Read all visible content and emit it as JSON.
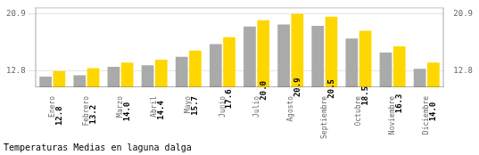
{
  "chart_data": {
    "type": "bar",
    "title": "Temperaturas Medias en laguna dalga",
    "categories": [
      "Enero",
      "Febrero",
      "Marzo",
      "Abril",
      "Mayo",
      "Junio",
      "Julio",
      "Agosto",
      "Septiembre",
      "Octubre",
      "Noviembre",
      "Diciembre"
    ],
    "series": [
      {
        "color": "#AAAAAA",
        "values": [
          12.0,
          12.2,
          13.4,
          13.6,
          14.8,
          16.6,
          19.1,
          19.4,
          19.2,
          17.4,
          15.4,
          13.1
        ]
      },
      {
        "color": "#FFD700",
        "values": [
          12.8,
          13.2,
          14.0,
          14.4,
          15.7,
          17.6,
          20.0,
          20.9,
          20.5,
          18.5,
          16.3,
          14.0
        ],
        "data_labels": true,
        "value_labels": [
          "12.8",
          "13.2",
          "14.0",
          "14.4",
          "15.7",
          "17.6",
          "20.0",
          "20.9",
          "20.5",
          "18.5",
          "16.3",
          "14.0"
        ]
      }
    ],
    "ylim": [
      10.5,
      21.8
    ],
    "yticks": [
      12.8,
      20.9
    ],
    "y2lim": [
      10.5,
      21.8
    ],
    "y2ticks": [
      12.8,
      20.9
    ],
    "grid": true
  }
}
